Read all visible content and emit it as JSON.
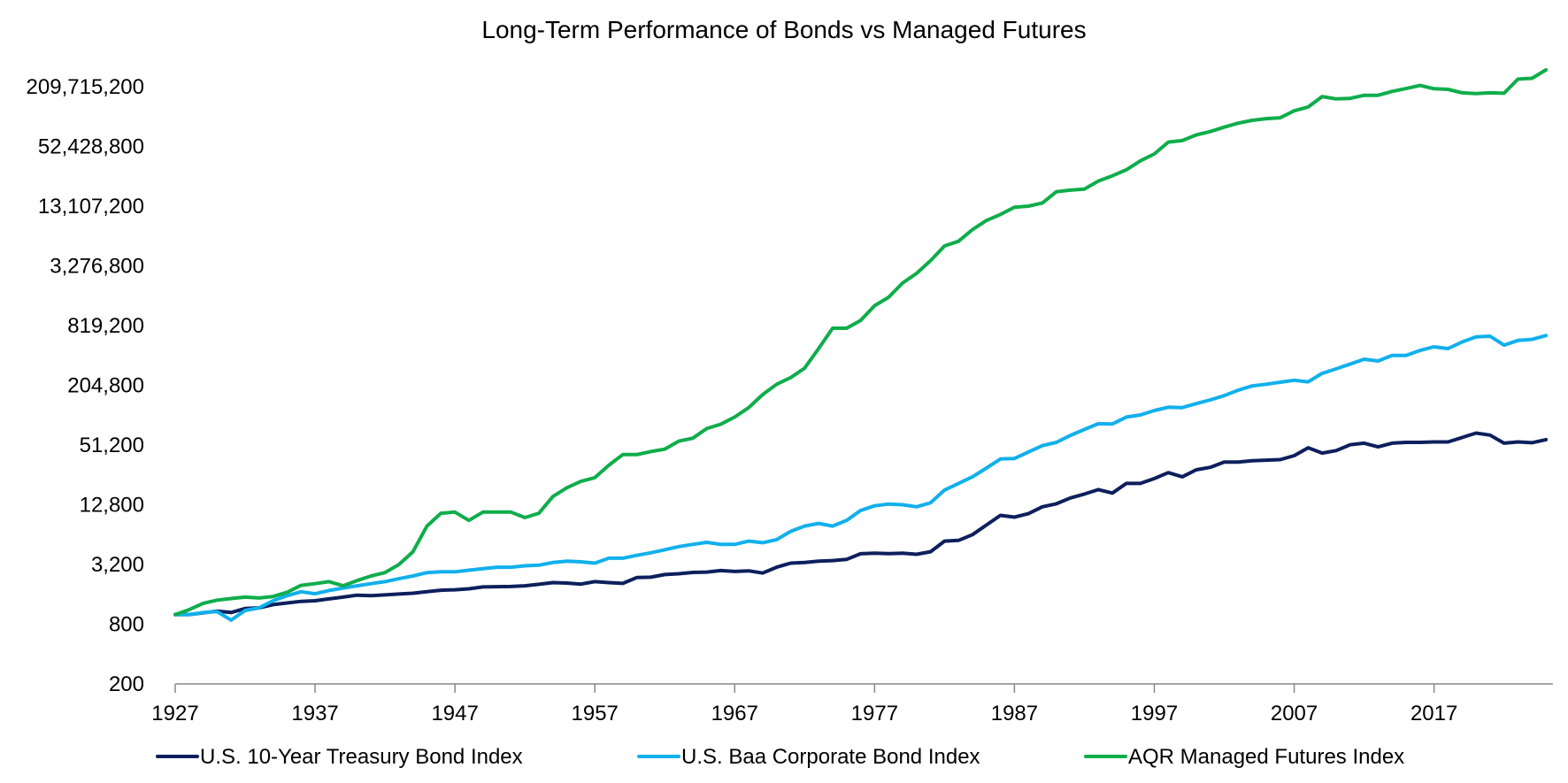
{
  "chart_data": {
    "type": "line",
    "title": "Long-Term Performance of Bonds vs Managed Futures",
    "xlabel": "",
    "ylabel": "",
    "y_scale": "log2",
    "ylim": [
      200,
      209715200
    ],
    "xlim": [
      1927,
      2024
    ],
    "y_ticks": [
      "200",
      "800",
      "3,200",
      "12,800",
      "51,200",
      "204,800",
      "819,200",
      "3,276,800",
      "13,107,200",
      "52,428,800",
      "209,715,200"
    ],
    "y_tick_values": [
      200,
      800,
      3200,
      12800,
      51200,
      204800,
      819200,
      3276800,
      13107200,
      52428800,
      209715200
    ],
    "x_ticks": [
      "1927",
      "1937",
      "1947",
      "1957",
      "1967",
      "1977",
      "1987",
      "1997",
      "2007",
      "2017"
    ],
    "x_tick_values": [
      1927,
      1937,
      1947,
      1957,
      1967,
      1977,
      1987,
      1997,
      2007,
      2017
    ],
    "grid": false,
    "legend_position": "bottom",
    "series": [
      {
        "name": "U.S. 10-Year Treasury Bond Index",
        "color": "#0d1f5c",
        "anchors": [
          [
            1927,
            1000
          ],
          [
            1928,
            1000
          ],
          [
            1929,
            1040
          ],
          [
            1930,
            1085
          ],
          [
            1931,
            1050
          ],
          [
            1932,
            1150
          ],
          [
            1933,
            1170
          ],
          [
            1934,
            1260
          ],
          [
            1935,
            1310
          ],
          [
            1936,
            1360
          ],
          [
            1937,
            1380
          ],
          [
            1938,
            1440
          ],
          [
            1939,
            1500
          ],
          [
            1940,
            1570
          ],
          [
            1941,
            1550
          ],
          [
            1942,
            1580
          ],
          [
            1943,
            1610
          ],
          [
            1944,
            1640
          ],
          [
            1945,
            1700
          ],
          [
            1946,
            1760
          ],
          [
            1947,
            1780
          ],
          [
            1948,
            1820
          ],
          [
            1949,
            1900
          ],
          [
            1950,
            1910
          ],
          [
            1951,
            1920
          ],
          [
            1952,
            1950
          ],
          [
            1953,
            2020
          ],
          [
            1954,
            2100
          ],
          [
            1955,
            2080
          ],
          [
            1956,
            2030
          ],
          [
            1957,
            2150
          ],
          [
            1958,
            2100
          ],
          [
            1959,
            2060
          ],
          [
            1960,
            2360
          ],
          [
            1961,
            2380
          ],
          [
            1962,
            2530
          ],
          [
            1963,
            2580
          ],
          [
            1964,
            2660
          ],
          [
            1965,
            2680
          ],
          [
            1966,
            2780
          ],
          [
            1967,
            2720
          ],
          [
            1968,
            2760
          ],
          [
            1969,
            2620
          ],
          [
            1970,
            3000
          ],
          [
            1971,
            3300
          ],
          [
            1972,
            3350
          ],
          [
            1973,
            3450
          ],
          [
            1974,
            3500
          ],
          [
            1975,
            3600
          ],
          [
            1976,
            4100
          ],
          [
            1977,
            4150
          ],
          [
            1978,
            4120
          ],
          [
            1979,
            4150
          ],
          [
            1980,
            4050
          ],
          [
            1981,
            4300
          ],
          [
            1982,
            5500
          ],
          [
            1983,
            5600
          ],
          [
            1984,
            6400
          ],
          [
            1985,
            8000
          ],
          [
            1986,
            10000
          ],
          [
            1987,
            9600
          ],
          [
            1988,
            10400
          ],
          [
            1989,
            12200
          ],
          [
            1990,
            13100
          ],
          [
            1991,
            15000
          ],
          [
            1992,
            16400
          ],
          [
            1993,
            18200
          ],
          [
            1994,
            16800
          ],
          [
            1995,
            21000
          ],
          [
            1996,
            21000
          ],
          [
            1997,
            23500
          ],
          [
            1998,
            27000
          ],
          [
            1999,
            24500
          ],
          [
            2000,
            28800
          ],
          [
            2001,
            30500
          ],
          [
            2002,
            34500
          ],
          [
            2003,
            34500
          ],
          [
            2004,
            35500
          ],
          [
            2005,
            36000
          ],
          [
            2006,
            36500
          ],
          [
            2007,
            40000
          ],
          [
            2008,
            48000
          ],
          [
            2009,
            42500
          ],
          [
            2010,
            45000
          ],
          [
            2011,
            51500
          ],
          [
            2012,
            53500
          ],
          [
            2013,
            49000
          ],
          [
            2014,
            53500
          ],
          [
            2015,
            54500
          ],
          [
            2016,
            54500
          ],
          [
            2017,
            55000
          ],
          [
            2018,
            55000
          ],
          [
            2019,
            61000
          ],
          [
            2020,
            67500
          ],
          [
            2021,
            64500
          ],
          [
            2022,
            53500
          ],
          [
            2023,
            55000
          ],
          [
            2024,
            54000
          ],
          [
            2025,
            58000
          ]
        ]
      },
      {
        "name": "U.S. Baa Corporate Bond Index",
        "color": "#11b0ec",
        "anchors": [
          [
            1927,
            1000
          ],
          [
            1928,
            1000
          ],
          [
            1929,
            1050
          ],
          [
            1930,
            1070
          ],
          [
            1931,
            880
          ],
          [
            1932,
            1100
          ],
          [
            1933,
            1170
          ],
          [
            1934,
            1380
          ],
          [
            1935,
            1550
          ],
          [
            1936,
            1700
          ],
          [
            1937,
            1620
          ],
          [
            1938,
            1750
          ],
          [
            1939,
            1850
          ],
          [
            1940,
            1950
          ],
          [
            1941,
            2050
          ],
          [
            1942,
            2150
          ],
          [
            1943,
            2300
          ],
          [
            1944,
            2450
          ],
          [
            1945,
            2650
          ],
          [
            1946,
            2700
          ],
          [
            1947,
            2700
          ],
          [
            1948,
            2800
          ],
          [
            1949,
            2900
          ],
          [
            1950,
            3000
          ],
          [
            1951,
            3000
          ],
          [
            1952,
            3100
          ],
          [
            1953,
            3150
          ],
          [
            1954,
            3350
          ],
          [
            1955,
            3450
          ],
          [
            1956,
            3400
          ],
          [
            1957,
            3300
          ],
          [
            1958,
            3700
          ],
          [
            1959,
            3700
          ],
          [
            1960,
            3950
          ],
          [
            1961,
            4200
          ],
          [
            1962,
            4500
          ],
          [
            1963,
            4850
          ],
          [
            1964,
            5100
          ],
          [
            1965,
            5350
          ],
          [
            1966,
            5100
          ],
          [
            1967,
            5100
          ],
          [
            1968,
            5500
          ],
          [
            1969,
            5300
          ],
          [
            1970,
            5700
          ],
          [
            1971,
            6900
          ],
          [
            1972,
            7800
          ],
          [
            1973,
            8300
          ],
          [
            1974,
            7800
          ],
          [
            1975,
            8900
          ],
          [
            1976,
            11200
          ],
          [
            1977,
            12500
          ],
          [
            1978,
            13000
          ],
          [
            1979,
            12800
          ],
          [
            1980,
            12200
          ],
          [
            1981,
            13400
          ],
          [
            1982,
            18000
          ],
          [
            1983,
            21000
          ],
          [
            1984,
            24500
          ],
          [
            1985,
            30000
          ],
          [
            1986,
            37000
          ],
          [
            1987,
            37500
          ],
          [
            1988,
            43500
          ],
          [
            1989,
            50500
          ],
          [
            1990,
            54500
          ],
          [
            1991,
            64000
          ],
          [
            1992,
            73500
          ],
          [
            1993,
            84000
          ],
          [
            1994,
            83500
          ],
          [
            1995,
            98000
          ],
          [
            1996,
            103000
          ],
          [
            1997,
            114000
          ],
          [
            1998,
            123000
          ],
          [
            1999,
            122000
          ],
          [
            2000,
            134000
          ],
          [
            2001,
            146000
          ],
          [
            2002,
            161000
          ],
          [
            2003,
            183000
          ],
          [
            2004,
            202000
          ],
          [
            2005,
            210000
          ],
          [
            2006,
            220000
          ],
          [
            2007,
            230000
          ],
          [
            2008,
            222000
          ],
          [
            2009,
            270000
          ],
          [
            2010,
            300000
          ],
          [
            2011,
            335000
          ],
          [
            2012,
            375000
          ],
          [
            2013,
            360000
          ],
          [
            2014,
            410000
          ],
          [
            2015,
            410000
          ],
          [
            2016,
            460000
          ],
          [
            2017,
            500000
          ],
          [
            2018,
            480000
          ],
          [
            2019,
            560000
          ],
          [
            2020,
            630000
          ],
          [
            2021,
            640000
          ],
          [
            2022,
            520000
          ],
          [
            2023,
            580000
          ],
          [
            2024,
            595000
          ],
          [
            2025,
            650000
          ]
        ]
      },
      {
        "name": "AQR Managed Futures Index",
        "color": "#0fad4b",
        "anchors": [
          [
            1927,
            1000
          ],
          [
            1928,
            1120
          ],
          [
            1929,
            1300
          ],
          [
            1930,
            1400
          ],
          [
            1931,
            1450
          ],
          [
            1932,
            1500
          ],
          [
            1933,
            1470
          ],
          [
            1934,
            1520
          ],
          [
            1935,
            1680
          ],
          [
            1936,
            1970
          ],
          [
            1937,
            2050
          ],
          [
            1938,
            2150
          ],
          [
            1939,
            1950
          ],
          [
            1940,
            2200
          ],
          [
            1941,
            2450
          ],
          [
            1942,
            2650
          ],
          [
            1943,
            3200
          ],
          [
            1944,
            4300
          ],
          [
            1945,
            7800
          ],
          [
            1946,
            10500
          ],
          [
            1947,
            10800
          ],
          [
            1948,
            8900
          ],
          [
            1949,
            10800
          ],
          [
            1950,
            10800
          ],
          [
            1951,
            10800
          ],
          [
            1952,
            9500
          ],
          [
            1953,
            10500
          ],
          [
            1954,
            15500
          ],
          [
            1955,
            19000
          ],
          [
            1956,
            22000
          ],
          [
            1957,
            24000
          ],
          [
            1958,
            32000
          ],
          [
            1959,
            41000
          ],
          [
            1960,
            41000
          ],
          [
            1961,
            44000
          ],
          [
            1962,
            46500
          ],
          [
            1963,
            56000
          ],
          [
            1964,
            60000
          ],
          [
            1965,
            75000
          ],
          [
            1966,
            83000
          ],
          [
            1967,
            98000
          ],
          [
            1968,
            122000
          ],
          [
            1969,
            165000
          ],
          [
            1970,
            210000
          ],
          [
            1971,
            245000
          ],
          [
            1972,
            305000
          ],
          [
            1973,
            480000
          ],
          [
            1974,
            770000
          ],
          [
            1975,
            770000
          ],
          [
            1976,
            920000
          ],
          [
            1977,
            1300000
          ],
          [
            1978,
            1580000
          ],
          [
            1979,
            2200000
          ],
          [
            1980,
            2750000
          ],
          [
            1981,
            3700000
          ],
          [
            1982,
            5200000
          ],
          [
            1983,
            5800000
          ],
          [
            1984,
            7600000
          ],
          [
            1985,
            9400000
          ],
          [
            1986,
            10800000
          ],
          [
            1987,
            12800000
          ],
          [
            1988,
            13100000
          ],
          [
            1989,
            14100000
          ],
          [
            1990,
            18300000
          ],
          [
            1991,
            19000000
          ],
          [
            1992,
            19500000
          ],
          [
            1993,
            23500000
          ],
          [
            1994,
            26500000
          ],
          [
            1995,
            30500000
          ],
          [
            1996,
            37500000
          ],
          [
            1997,
            44000000
          ],
          [
            1998,
            58000000
          ],
          [
            1999,
            60000000
          ],
          [
            2000,
            68500000
          ],
          [
            2001,
            74000000
          ],
          [
            2002,
            82000000
          ],
          [
            2003,
            90000000
          ],
          [
            2004,
            96000000
          ],
          [
            2005,
            100000000
          ],
          [
            2006,
            102000000
          ],
          [
            2007,
            120000000
          ],
          [
            2008,
            131000000
          ],
          [
            2009,
            167000000
          ],
          [
            2010,
            158000000
          ],
          [
            2011,
            160000000
          ],
          [
            2012,
            172000000
          ],
          [
            2013,
            172000000
          ],
          [
            2014,
            188000000
          ],
          [
            2015,
            201000000
          ],
          [
            2016,
            216000000
          ],
          [
            2017,
            200000000
          ],
          [
            2018,
            197000000
          ],
          [
            2019,
            182000000
          ],
          [
            2020,
            179000000
          ],
          [
            2021,
            182000000
          ],
          [
            2022,
            180000000
          ],
          [
            2023,
            250000000
          ],
          [
            2024,
            255000000
          ],
          [
            2025,
            310000000
          ]
        ]
      }
    ]
  }
}
